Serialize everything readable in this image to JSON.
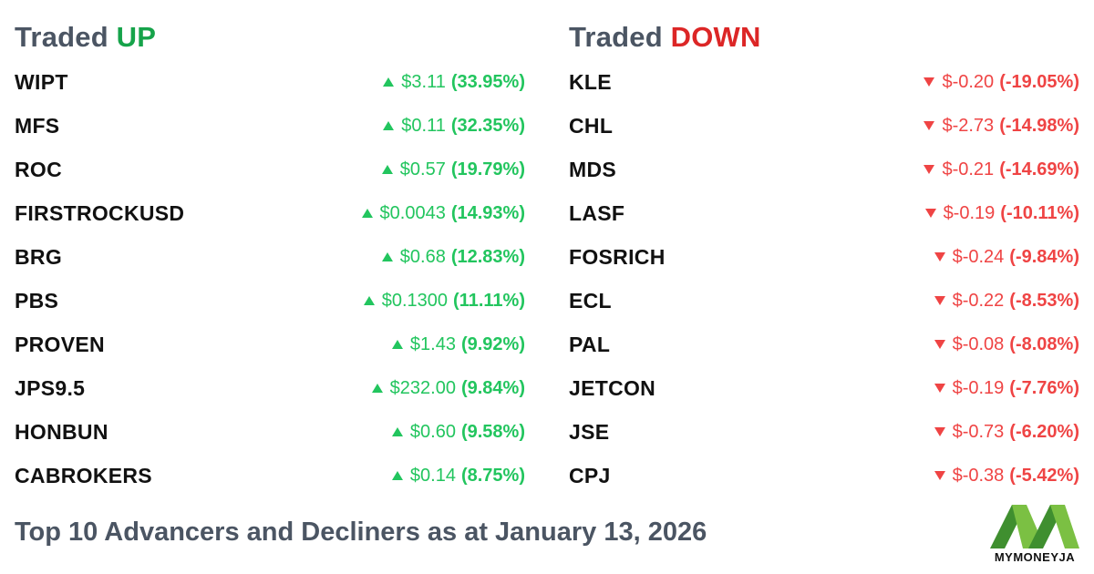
{
  "up": {
    "title_prefix": "Traded ",
    "title_accent": "UP",
    "rows": [
      {
        "symbol": "WIPT",
        "price": "$3.11",
        "pct": "(33.95%)"
      },
      {
        "symbol": "MFS",
        "price": "$0.11",
        "pct": "(32.35%)"
      },
      {
        "symbol": "ROC",
        "price": "$0.57",
        "pct": "(19.79%)"
      },
      {
        "symbol": "FIRSTROCKUSD",
        "price": "$0.0043",
        "pct": "(14.93%)"
      },
      {
        "symbol": "BRG",
        "price": "$0.68",
        "pct": "(12.83%)"
      },
      {
        "symbol": "PBS",
        "price": "$0.1300",
        "pct": "(11.11%)"
      },
      {
        "symbol": "PROVEN",
        "price": "$1.43",
        "pct": "(9.92%)"
      },
      {
        "symbol": "JPS9.5",
        "price": "$232.00",
        "pct": "(9.84%)"
      },
      {
        "symbol": "HONBUN",
        "price": "$0.60",
        "pct": "(9.58%)"
      },
      {
        "symbol": "CABROKERS",
        "price": "$0.14",
        "pct": "(8.75%)"
      }
    ]
  },
  "down": {
    "title_prefix": "Traded ",
    "title_accent": "DOWN",
    "rows": [
      {
        "symbol": "KLE",
        "price": "$-0.20",
        "pct": "(-19.05%)"
      },
      {
        "symbol": "CHL",
        "price": "$-2.73",
        "pct": "(-14.98%)"
      },
      {
        "symbol": "MDS",
        "price": "$-0.21",
        "pct": "(-14.69%)"
      },
      {
        "symbol": "LASF",
        "price": "$-0.19",
        "pct": "(-10.11%)"
      },
      {
        "symbol": "FOSRICH",
        "price": "$-0.24",
        "pct": "(-9.84%)"
      },
      {
        "symbol": "ECL",
        "price": "$-0.22",
        "pct": "(-8.53%)"
      },
      {
        "symbol": "PAL",
        "price": "$-0.08",
        "pct": "(-8.08%)"
      },
      {
        "symbol": "JETCON",
        "price": "$-0.19",
        "pct": "(-7.76%)"
      },
      {
        "symbol": "JSE",
        "price": "$-0.73",
        "pct": "(-6.20%)"
      },
      {
        "symbol": "CPJ",
        "price": "$-0.38",
        "pct": "(-5.42%)"
      }
    ]
  },
  "footer": {
    "title": "Top 10 Advancers and Decliners as at January 13, 2026"
  },
  "logo": {
    "text": "MYMONEYJA",
    "icon": "mymoneyja-logo-icon"
  },
  "colors": {
    "up": "#22c55e",
    "up_title": "#16a34a",
    "down": "#ef4444",
    "down_title": "#dc2626",
    "heading_gray": "#4b5563",
    "logo_green_dark": "#3f8f2f",
    "logo_green_light": "#7bc043"
  },
  "icons": {
    "up_arrow": "triangle-up-icon",
    "down_arrow": "triangle-down-icon"
  }
}
